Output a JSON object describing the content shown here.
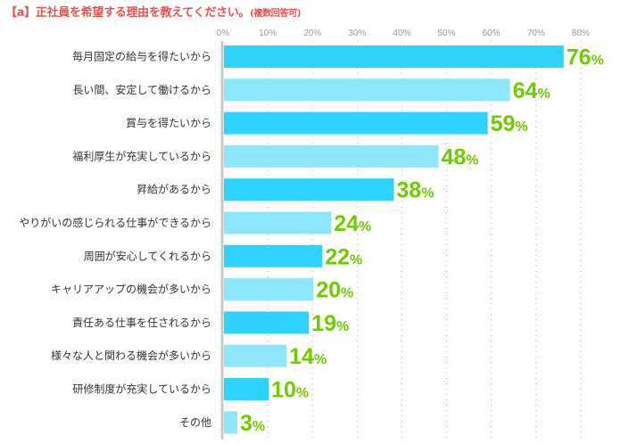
{
  "title": "【a】正社員を希望する理由を教えてください。",
  "subtitle": "(複数回答可)",
  "chart_data": {
    "type": "bar",
    "orientation": "horizontal",
    "title": "【a】正社員を希望する理由を教えてください。(複数回答可)",
    "categories": [
      "毎月固定の給与を得たいから",
      "長い間、安定して働けるから",
      "賞与を得たいから",
      "福利厚生が充実しているから",
      "昇給があるから",
      "やりがいの感じられる仕事ができるから",
      "周囲が安心してくれるから",
      "キャリアアップの機会が多いから",
      "責任ある仕事を任されるから",
      "様々な人と関わる機会が多いから",
      "研修制度が充実しているから",
      "その他"
    ],
    "values": [
      76,
      64,
      59,
      48,
      38,
      24,
      22,
      20,
      19,
      14,
      10,
      3
    ],
    "unit": "%",
    "xlim": [
      0,
      80
    ],
    "ticks": [
      "0%",
      "10%",
      "20%",
      "30%",
      "40%",
      "50%",
      "60%",
      "70%",
      "80%"
    ],
    "colors": [
      "#2dd3fd",
      "#8ee6fb"
    ],
    "label_color": "#6ccc00",
    "grid": true
  }
}
